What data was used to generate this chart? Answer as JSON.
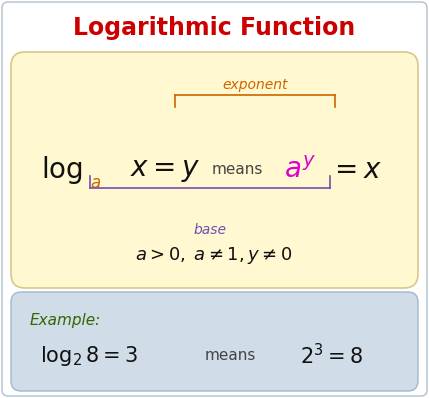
{
  "title": "Logarithmic Function",
  "title_color": "#cc0000",
  "title_fontsize": 17,
  "bg_color": "#ffffff",
  "outer_edge": "#b0c0d0",
  "yellow_box_color": "#fff8d0",
  "yellow_box_edge": "#d8c88a",
  "blue_box_color": "#d0dce8",
  "blue_box_edge": "#a0b8cc",
  "exponent_label": "exponent",
  "exponent_color": "#cc6600",
  "base_label": "base",
  "base_color": "#7050b0",
  "means_color": "#444444",
  "magenta_color": "#dd00cc",
  "black_color": "#111111",
  "green_color": "#336600",
  "example_label": "Example:",
  "fig_bg": "#ffffff"
}
